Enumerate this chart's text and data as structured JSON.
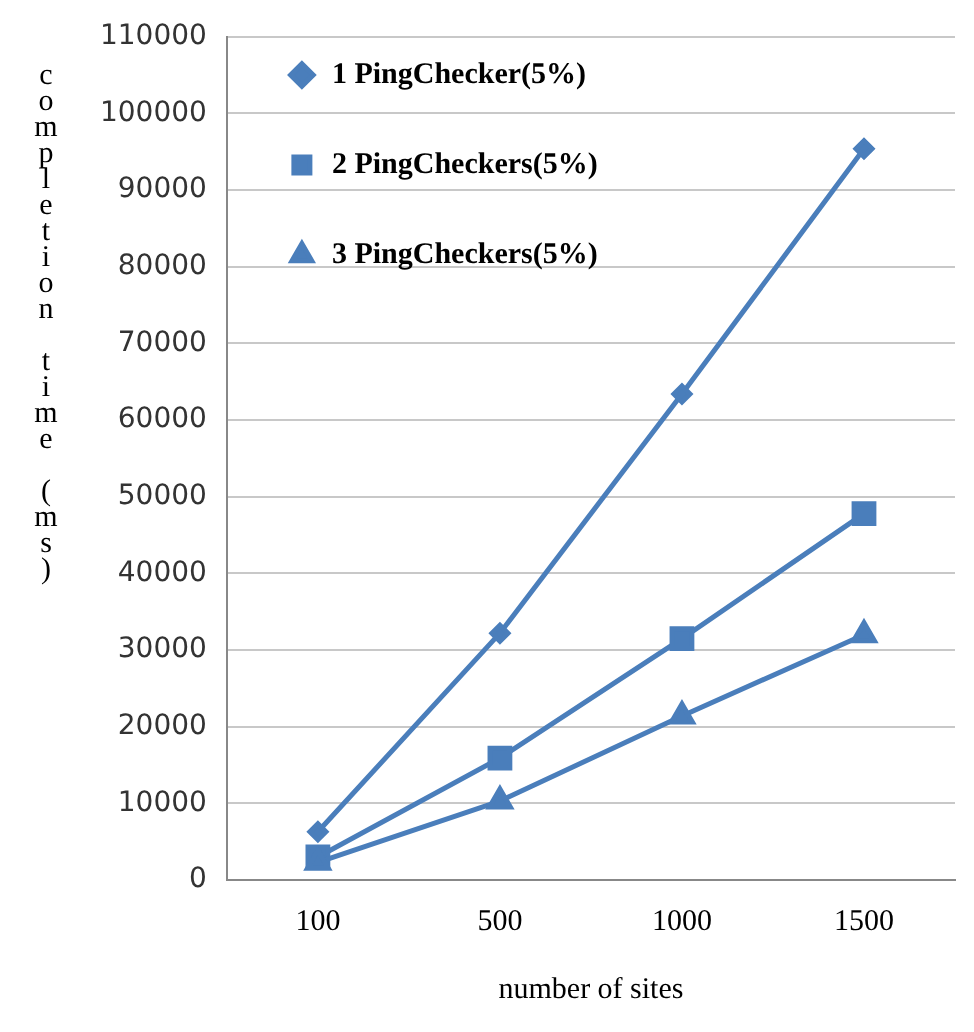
{
  "chart_data": {
    "type": "line",
    "xlabel": "number of sites",
    "ylabel": "completion time (ms)",
    "categories": [
      "100",
      "500",
      "1000",
      "1500"
    ],
    "series": [
      {
        "name": "1 PingChecker(5%)",
        "color": "#4a7ebb",
        "marker": "diamond",
        "values": [
          6300,
          32200,
          63400,
          95400
        ]
      },
      {
        "name": "2 PingCheckers(5%)",
        "color": "#4a7ebb",
        "marker": "square",
        "values": [
          3000,
          15900,
          31500,
          47800
        ]
      },
      {
        "name": "3 PingCheckers(5%)",
        "color": "#4a7ebb",
        "marker": "triangle",
        "values": [
          2300,
          10300,
          21400,
          32000
        ]
      }
    ],
    "ylim": [
      0,
      110000
    ],
    "yticks": [
      0,
      10000,
      20000,
      30000,
      40000,
      50000,
      60000,
      70000,
      80000,
      90000,
      100000,
      110000
    ],
    "grid": "y",
    "legend": "top left"
  }
}
